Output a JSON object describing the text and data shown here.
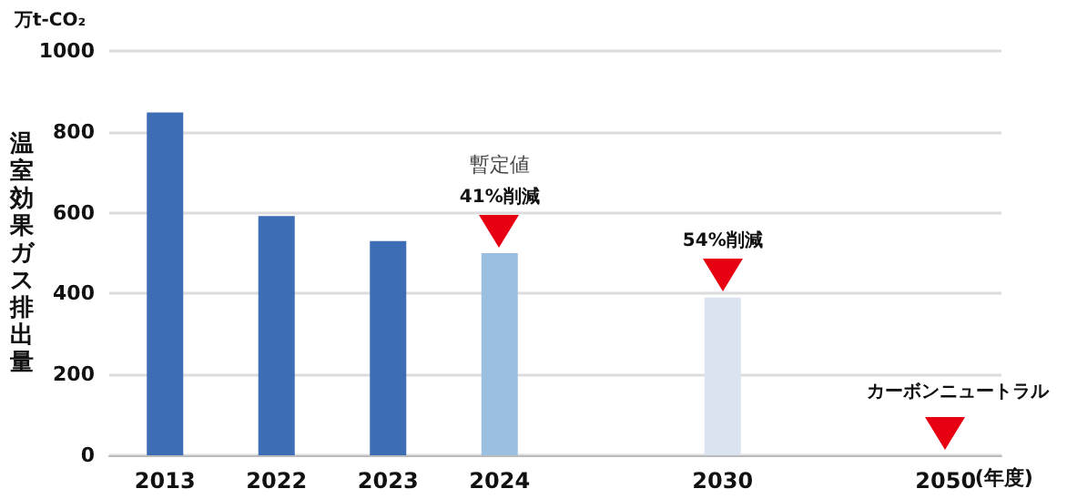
{
  "chart_data": {
    "type": "bar",
    "ylabel": "温室効果ガス排出量",
    "xlabel": "(年度)",
    "categories": [
      "2013",
      "2022",
      "2023",
      "2024",
      null,
      "2030",
      null,
      "2050"
    ],
    "values": [
      848,
      592,
      530,
      500,
      null,
      390,
      null,
      null
    ],
    "colors": [
      "#3d6db4",
      "#3d6db4",
      "#3d6db4",
      "#9bbfe0",
      null,
      "#dbe3f1",
      null,
      null
    ],
    "ylim": [
      0,
      1000
    ],
    "yticks": [
      0,
      200,
      400,
      600,
      800,
      1000
    ],
    "grid": "y",
    "annotations": [
      "万t-CO₂",
      "暫定値",
      "カーボンニュートラル",
      {
        "text": "41%削減",
        "x": "2024",
        "y": 500
      },
      {
        "text": "54%削減",
        "x": "2030",
        "y": 390
      }
    ]
  }
}
